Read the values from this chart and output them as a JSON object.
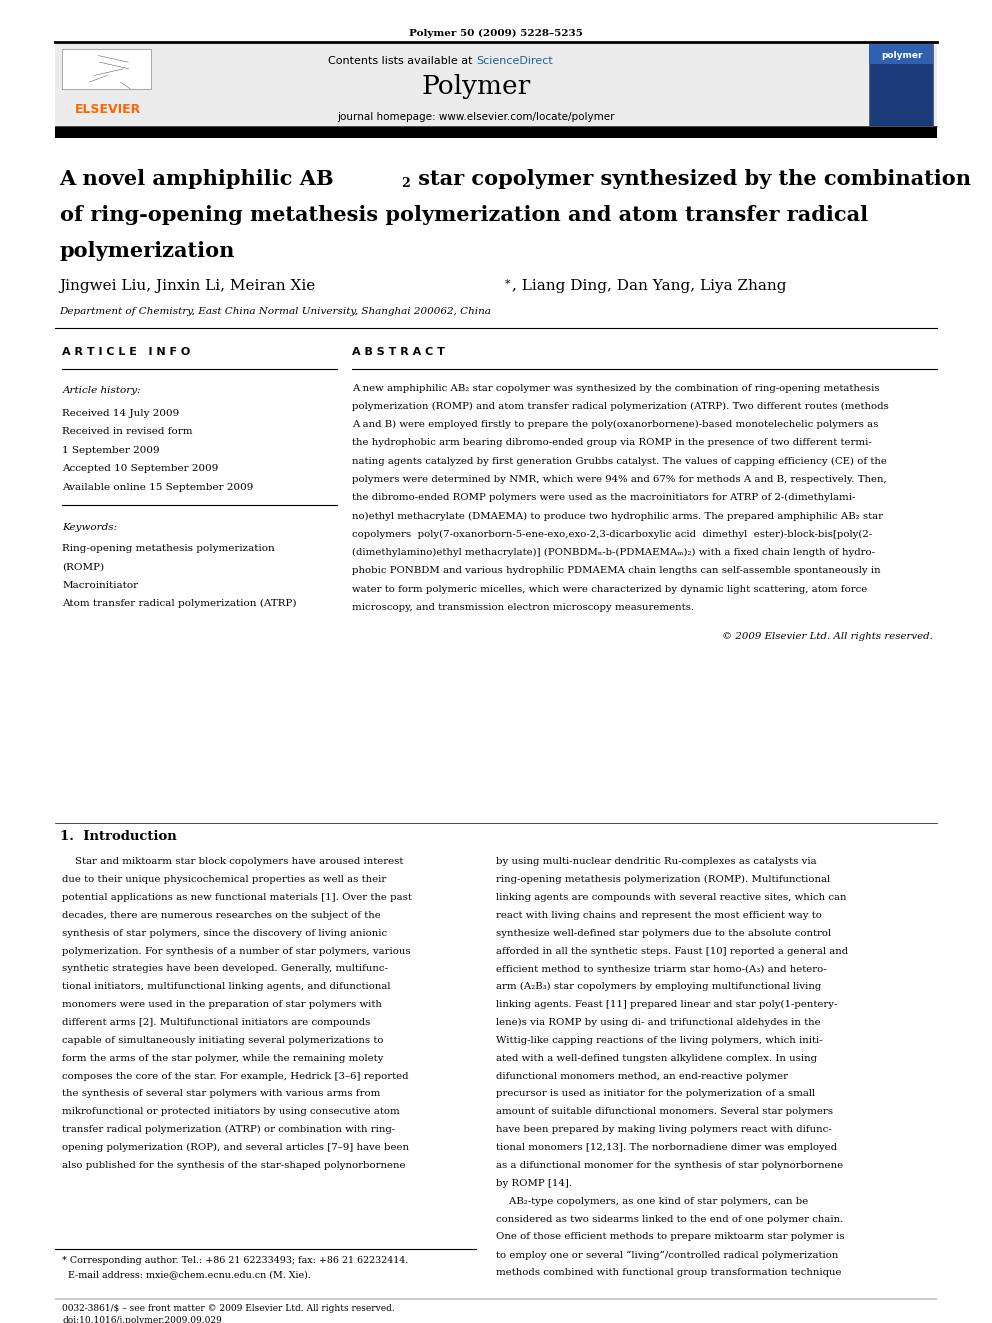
{
  "page_width": 9.92,
  "page_height": 13.23,
  "bg_color": "#ffffff",
  "journal_citation": "Polymer 50 (2009) 5228–5235",
  "header_bg": "#ebebeb",
  "contents_text": "Contents lists available at ",
  "sciencedirect_text": "ScienceDirect",
  "sciencedirect_color": "#2060a0",
  "journal_title": "Polymer",
  "journal_url": "journal homepage: www.elsevier.com/locate/polymer",
  "elsevier_color": "#ff6600",
  "article_info_header": "A R T I C L E   I N F O",
  "article_history_header": "Article history:",
  "received_date": "Received 14 July 2009",
  "received_revised": "Received in revised form",
  "revised_date": "1 September 2009",
  "accepted_date": "Accepted 10 September 2009",
  "available_date": "Available online 15 September 2009",
  "keywords_header": "Keywords:",
  "keyword1": "Ring-opening metathesis polymerization",
  "keyword1b": "(ROMP)",
  "keyword2": "Macroinitiator",
  "keyword3": "Atom transfer radical polymerization (ATRP)",
  "abstract_header": "A B S T R A C T",
  "abstract_line1": "A new amphiphilic AB₂ star copolymer was synthesized by the combination of ring-opening metathesis",
  "abstract_line2": "polymerization (ROMP) and atom transfer radical polymerization (ATRP). Two different routes (methods",
  "abstract_line3": "A and B) were employed firstly to prepare the poly(oxanorbornene)-based monotelechelic polymers as",
  "abstract_line4": "the hydrophobic arm bearing dibromo-ended group via ROMP in the presence of two different termi-",
  "abstract_line5": "nating agents catalyzed by first generation Grubbs catalyst. The values of capping efficiency (CE) of the",
  "abstract_line6": "polymers were determined by NMR, which were 94% and 67% for methods A and B, respectively. Then,",
  "abstract_line7": "the dibromo-ended ROMP polymers were used as the macroinitiators for ATRP of 2-(dimethylami-",
  "abstract_line8": "no)ethyl methacrylate (DMAEMA) to produce two hydrophilic arms. The prepared amphiphilic AB₂ star",
  "abstract_line9": "copolymers  poly(7-oxanorborn-5-ene-exo,exo-2,3-dicarboxylic acid  dimethyl  ester)-block-bis[poly(2-",
  "abstract_line10": "(dimethylamino)ethyl methacrylate)] (PONBDMₙ-b-(PDMAEMAₘ)₂) with a fixed chain length of hydro-",
  "abstract_line11": "phobic PONBDM and various hydrophilic PDMAEMA chain lengths can self-assemble spontaneously in",
  "abstract_line12": "water to form polymeric micelles, which were characterized by dynamic light scattering, atom force",
  "abstract_line13": "microscopy, and transmission electron microscopy measurements.",
  "copyright_text": "© 2009 Elsevier Ltd. All rights reserved.",
  "section1_header": "1.  Introduction",
  "intro_left": [
    "    Star and miktoarm star block copolymers have aroused interest",
    "due to their unique physicochemical properties as well as their",
    "potential applications as new functional materials [1]. Over the past",
    "decades, there are numerous researches on the subject of the",
    "synthesis of star polymers, since the discovery of living anionic",
    "polymerization. For synthesis of a number of star polymers, various",
    "synthetic strategies have been developed. Generally, multifunc-",
    "tional initiators, multifunctional linking agents, and difunctional",
    "monomers were used in the preparation of star polymers with",
    "different arms [2]. Multifunctional initiators are compounds",
    "capable of simultaneously initiating several polymerizations to",
    "form the arms of the star polymer, while the remaining molety",
    "composes the core of the star. For example, Hedrick [3–6] reported",
    "the synthesis of several star polymers with various arms from",
    "mikrofunctional or protected initiators by using consecutive atom",
    "transfer radical polymerization (ATRP) or combination with ring-",
    "opening polymerization (ROP), and several articles [7–9] have been",
    "also published for the synthesis of the star-shaped polynorbornene"
  ],
  "intro_right": [
    "by using multi-nuclear dendritic Ru-complexes as catalysts via",
    "ring-opening metathesis polymerization (ROMP). Multifunctional",
    "linking agents are compounds with several reactive sites, which can",
    "react with living chains and represent the most efficient way to",
    "synthesize well-defined star polymers due to the absolute control",
    "afforded in all the synthetic steps. Faust [10] reported a general and",
    "efficient method to synthesize triarm star homo-(A₃) and hetero-",
    "arm (A₂B₃) star copolymers by employing multifunctional living",
    "linking agents. Feast [11] prepared linear and star poly(1-pentery-",
    "lene)s via ROMP by using di- and trifunctional aldehydes in the",
    "Wittig-like capping reactions of the living polymers, which initi-",
    "ated with a well-defined tungsten alkylidene complex. In using",
    "difunctional monomers method, an end-reactive polymer",
    "precursor is used as initiator for the polymerization of a small",
    "amount of suitable difunctional monomers. Several star polymers",
    "have been prepared by making living polymers react with difunc-",
    "tional monomers [12,13]. The norbornadiene dimer was employed",
    "as a difunctional monomer for the synthesis of star polynorbornene",
    "by ROMP [14].",
    "    AB₂-type copolymers, as one kind of star polymers, can be",
    "considered as two sidearms linked to the end of one polymer chain.",
    "One of those efficient methods to prepare miktoarm star polymer is",
    "to employ one or several “living”/controlled radical polymerization",
    "methods combined with functional group transformation technique"
  ],
  "footnote_line1": "* Corresponding author. Tel.: +86 21 62233493; fax: +86 21 62232414.",
  "footnote_line2": "  E-mail address: mxie@chem.ecnu.edu.cn (M. Xie).",
  "footer_text1": "0032-3861/$ – see front matter © 2009 Elsevier Ltd. All rights reserved.",
  "footer_text2": "doi:10.1016/j.polymer.2009.09.029"
}
